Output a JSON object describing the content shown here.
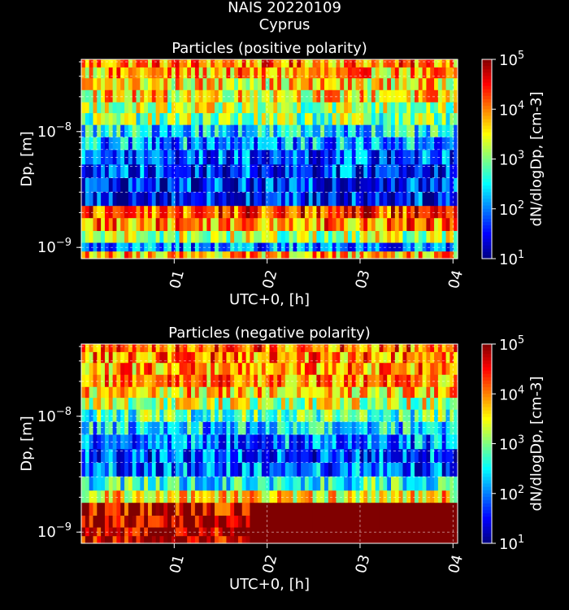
{
  "figure": {
    "title_line1": "NAIS 20220109",
    "title_line2": "Cyprus"
  },
  "chart_data": [
    {
      "type": "heatmap",
      "title": "Particles (positive polarity)",
      "xlabel": "UTC+0, [h]",
      "ylabel": "Dp, [m]",
      "xticks": [
        "01",
        "02",
        "03",
        "04"
      ],
      "xlim_hours": [
        0.0,
        4.05
      ],
      "ylim_m": [
        8e-10,
        4.2e-08
      ],
      "yscale": "log",
      "yticks": [
        {
          "value": 1e-08,
          "label": "10",
          "exp": "−8"
        },
        {
          "value": 1e-09,
          "label": "10",
          "exp": "−9"
        }
      ],
      "colorbar": {
        "label": "dN/dlogDp, [cm-3]",
        "scale": "log",
        "range": [
          10,
          100000
        ],
        "ticks": [
          {
            "label": "10",
            "exp": "1"
          },
          {
            "label": "10",
            "exp": "2"
          },
          {
            "label": "10",
            "exp": "3"
          },
          {
            "label": "10",
            "exp": "4"
          },
          {
            "label": "10",
            "exp": "5"
          }
        ]
      },
      "grid": true,
      "colormap": "jet",
      "size_bins_log10_concentration": [
        {
          "dp_m": 4e-08,
          "log10_conc": 4.0
        },
        {
          "dp_m": 3.2e-08,
          "log10_conc": 3.8
        },
        {
          "dp_m": 2.6e-08,
          "log10_conc": 3.6
        },
        {
          "dp_m": 2e-08,
          "log10_conc": 3.6
        },
        {
          "dp_m": 1.6e-08,
          "log10_conc": 3.2
        },
        {
          "dp_m": 1.3e-08,
          "log10_conc": 3.0
        },
        {
          "dp_m": 1e-08,
          "log10_conc": 2.4
        },
        {
          "dp_m": 8e-09,
          "log10_conc": 2.1
        },
        {
          "dp_m": 6e-09,
          "log10_conc": 1.8
        },
        {
          "dp_m": 4.5e-09,
          "log10_conc": 1.7
        },
        {
          "dp_m": 3.5e-09,
          "log10_conc": 1.6
        },
        {
          "dp_m": 2.6e-09,
          "log10_conc": 1.6
        },
        {
          "dp_m": 2e-09,
          "log10_conc": 4.3
        },
        {
          "dp_m": 1.6e-09,
          "log10_conc": 4.0
        },
        {
          "dp_m": 1.2e-09,
          "log10_conc": 3.2
        },
        {
          "dp_m": 1e-09,
          "log10_conc": 2.0
        },
        {
          "dp_m": 8.5e-10,
          "log10_conc": 3.8
        }
      ]
    },
    {
      "type": "heatmap",
      "title": "Particles (negative polarity)",
      "xlabel": "UTC+0, [h]",
      "ylabel": "Dp, [m]",
      "xticks": [
        "01",
        "02",
        "03",
        "04"
      ],
      "xlim_hours": [
        0.0,
        4.05
      ],
      "ylim_m": [
        8e-10,
        4.2e-08
      ],
      "yscale": "log",
      "yticks": [
        {
          "value": 1e-08,
          "label": "10",
          "exp": "−8"
        },
        {
          "value": 1e-09,
          "label": "10",
          "exp": "−9"
        }
      ],
      "colorbar": {
        "label": "dN/dlogDp, [cm-3]",
        "scale": "log",
        "range": [
          10,
          100000
        ],
        "ticks": [
          {
            "label": "10",
            "exp": "1"
          },
          {
            "label": "10",
            "exp": "2"
          },
          {
            "label": "10",
            "exp": "3"
          },
          {
            "label": "10",
            "exp": "4"
          },
          {
            "label": "10",
            "exp": "5"
          }
        ]
      },
      "grid": true,
      "colormap": "jet",
      "size_bins_log10_concentration": [
        {
          "dp_m": 4e-08,
          "log10_conc": 4.1
        },
        {
          "dp_m": 3.2e-08,
          "log10_conc": 4.0
        },
        {
          "dp_m": 2.6e-08,
          "log10_conc": 3.9
        },
        {
          "dp_m": 2e-08,
          "log10_conc": 3.9
        },
        {
          "dp_m": 1.6e-08,
          "log10_conc": 3.7
        },
        {
          "dp_m": 1.3e-08,
          "log10_conc": 3.3
        },
        {
          "dp_m": 1e-08,
          "log10_conc": 2.8
        },
        {
          "dp_m": 8e-09,
          "log10_conc": 2.3
        },
        {
          "dp_m": 6e-09,
          "log10_conc": 2.0
        },
        {
          "dp_m": 4.5e-09,
          "log10_conc": 1.8
        },
        {
          "dp_m": 3.5e-09,
          "log10_conc": 1.9
        },
        {
          "dp_m": 2.6e-09,
          "log10_conc": 2.6
        },
        {
          "dp_m": 2e-09,
          "log10_conc": 3.6
        },
        {
          "dp_m": 1.6e-09,
          "log10_conc": 4.7
        },
        {
          "dp_m": 1.2e-09,
          "log10_conc": 4.8
        },
        {
          "dp_m": 1e-09,
          "log10_conc": 4.8
        },
        {
          "dp_m": 8.5e-10,
          "log10_conc": 4.8
        }
      ]
    }
  ]
}
